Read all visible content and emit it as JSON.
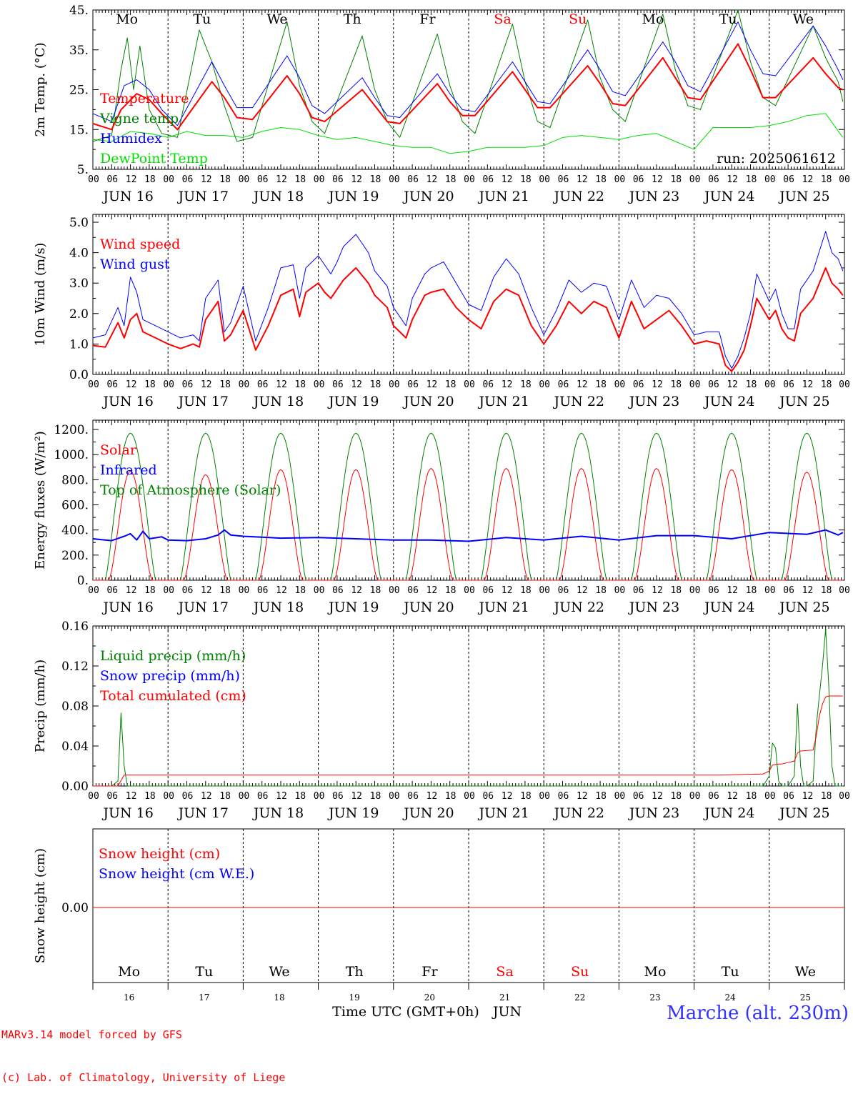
{
  "colors": {
    "red": "#ff0000",
    "blue": "#0000ff",
    "green": "#008000",
    "lightgreen": "#00dd00",
    "darkblue": "#3333ff"
  },
  "footer": {
    "credit_line1": "MARv3.14 model forced by GFS",
    "credit_line2": "(c) Lab. of Climatology, University of Liege",
    "xlabel": "Time UTC (GMT+0h)",
    "month": "JUN",
    "station": "Marche (alt. 230m)"
  },
  "weekdays": [
    "Mo",
    "Tu",
    "We",
    "Th",
    "Fr",
    "Sa",
    "Su",
    "Mo",
    "Tu",
    "We"
  ],
  "weekend_flags": [
    false,
    false,
    false,
    false,
    false,
    true,
    true,
    false,
    false,
    false
  ],
  "date_labels": [
    "JUN 16",
    "JUN 17",
    "JUN 18",
    "JUN 19",
    "JUN 20",
    "JUN 21",
    "JUN 22",
    "JUN 23",
    "JUN 24",
    "JUN 25"
  ],
  "day_numbers": [
    "16",
    "17",
    "18",
    "19",
    "20",
    "21",
    "22",
    "23",
    "24",
    "25"
  ],
  "hour_labels": [
    "00",
    "06",
    "12",
    "18"
  ],
  "chart_data": [
    {
      "type": "line",
      "id": "temperature",
      "ylabel": "2m Temp. (°C)",
      "yticks": [
        "5.",
        "15.",
        "25.",
        "35.",
        "45."
      ],
      "ylim": [
        5,
        45
      ],
      "x_unit": "hours since 2025-06-16 00 UTC",
      "annotation": "run: 2025061612",
      "series": [
        {
          "name": "Temperature",
          "color": "#ff0000",
          "width": 2,
          "x": [
            0,
            6,
            9,
            14,
            18,
            22,
            27,
            38,
            42,
            46,
            51,
            62,
            66,
            70,
            74,
            86,
            90,
            94,
            98,
            110,
            114,
            118,
            122,
            134,
            138,
            142,
            146,
            158,
            162,
            166,
            170,
            182,
            186,
            190,
            194,
            206,
            210,
            214,
            218,
            230,
            234,
            238,
            239.5
          ],
          "values": [
            16.5,
            15,
            20,
            24,
            22.5,
            19,
            15,
            27,
            23,
            18,
            17.5,
            28.5,
            24,
            18,
            17,
            25,
            21,
            17,
            16.5,
            26.5,
            22,
            18.5,
            18.5,
            29.5,
            25,
            20.5,
            20.5,
            31,
            26.5,
            21.5,
            21,
            33,
            28,
            23,
            22.5,
            36.5,
            30,
            23,
            23,
            33,
            29,
            25.5,
            25
          ]
        },
        {
          "name": "Vigne temp",
          "color": "#008000",
          "width": 1,
          "x": [
            0,
            6,
            9,
            11,
            13,
            15,
            18,
            22,
            27,
            34,
            38,
            42,
            46,
            51,
            62,
            66,
            70,
            74,
            86,
            90,
            94,
            98,
            110,
            114,
            118,
            122,
            134,
            138,
            142,
            146,
            158,
            162,
            166,
            170,
            182,
            186,
            190,
            194,
            206,
            210,
            214,
            218,
            230,
            234,
            238,
            239.5
          ],
          "values": [
            12,
            13.5,
            30,
            38,
            25,
            36,
            20,
            14,
            13,
            40,
            32,
            21,
            12,
            13,
            42,
            26,
            17,
            14,
            38.5,
            25,
            17,
            13,
            39,
            26,
            17,
            14,
            41.5,
            27,
            17,
            15.5,
            42.5,
            28,
            20,
            17,
            44,
            30,
            21,
            20,
            45,
            32,
            23,
            21,
            41,
            33,
            27,
            22
          ]
        },
        {
          "name": "Humidex",
          "color": "#0000ff",
          "width": 1,
          "x": [
            0,
            6,
            10,
            14,
            18,
            22,
            27,
            38,
            42,
            46,
            51,
            62,
            66,
            70,
            74,
            86,
            90,
            94,
            98,
            110,
            114,
            118,
            122,
            134,
            138,
            142,
            146,
            158,
            162,
            166,
            170,
            182,
            186,
            190,
            194,
            206,
            210,
            214,
            218,
            230,
            234,
            238,
            239.5
          ],
          "values": [
            19,
            17,
            26,
            27.5,
            25,
            20,
            16,
            32,
            26,
            20.5,
            20.5,
            33.5,
            28,
            21,
            19,
            28,
            23,
            18.5,
            18,
            29,
            24,
            20,
            19.5,
            32,
            27,
            22,
            21.5,
            35,
            30,
            24.5,
            23.5,
            37,
            32,
            26,
            24.5,
            42,
            35,
            29,
            28.5,
            41,
            36,
            30,
            27.5
          ]
        },
        {
          "name": "DewPoint Temp",
          "color": "#00dd00",
          "width": 1,
          "x": [
            0,
            6,
            12,
            18,
            24,
            30,
            36,
            42,
            48,
            54,
            60,
            66,
            72,
            78,
            84,
            90,
            96,
            102,
            108,
            114,
            120,
            126,
            132,
            138,
            144,
            150,
            156,
            162,
            168,
            174,
            180,
            186,
            192,
            198,
            204,
            210,
            216,
            222,
            228,
            234,
            239.5
          ],
          "values": [
            12.5,
            12,
            14.5,
            14,
            13,
            14.5,
            13.5,
            13.5,
            13,
            14.5,
            15.5,
            15,
            13.5,
            12.5,
            13,
            12,
            11,
            10.5,
            10.5,
            9,
            9.5,
            10.5,
            10.5,
            10.5,
            11,
            13,
            13.5,
            13,
            12.5,
            13.5,
            14,
            12,
            10,
            15.5,
            15.5,
            15.5,
            16,
            17,
            18.5,
            19,
            13
          ]
        }
      ]
    },
    {
      "type": "line",
      "id": "wind",
      "ylabel": "10m Wind (m/s)",
      "yticks": [
        "0.0",
        "1.0",
        "2.0",
        "3.0",
        "4.0",
        "5.0"
      ],
      "ylim": [
        0,
        5
      ],
      "series": [
        {
          "name": "Wind speed",
          "color": "#ff0000",
          "width": 2,
          "x": [
            0,
            4,
            8,
            10,
            12,
            14,
            16,
            20,
            24,
            28,
            32,
            34,
            36,
            40,
            42,
            44,
            48,
            52,
            56,
            60,
            64,
            66,
            68,
            72,
            74,
            76,
            78,
            80,
            84,
            88,
            90,
            94,
            96,
            100,
            102,
            106,
            108,
            112,
            116,
            120,
            124,
            128,
            132,
            136,
            140,
            144,
            148,
            152,
            156,
            160,
            164,
            168,
            172,
            176,
            180,
            184,
            188,
            192,
            196,
            200,
            202,
            204,
            206,
            208,
            210,
            212,
            216,
            218,
            220,
            222,
            224,
            226,
            230,
            234,
            236,
            238,
            239.5
          ],
          "values": [
            0.95,
            0.9,
            1.7,
            1.2,
            1.8,
            2.0,
            1.4,
            1.2,
            1.0,
            0.85,
            1.0,
            0.9,
            1.8,
            2.4,
            1.1,
            1.3,
            2.1,
            0.8,
            1.6,
            2.6,
            2.8,
            1.9,
            2.7,
            3.0,
            2.7,
            2.5,
            2.8,
            3.1,
            3.5,
            3.0,
            2.6,
            2.2,
            1.6,
            1.2,
            1.8,
            2.6,
            2.7,
            2.8,
            2.2,
            1.8,
            1.5,
            2.4,
            2.8,
            2.6,
            1.6,
            1.0,
            1.6,
            2.4,
            2.0,
            2.4,
            2.2,
            1.2,
            2.4,
            1.5,
            1.8,
            2.1,
            1.6,
            1.0,
            1.1,
            1.0,
            0.3,
            0.1,
            0.4,
            0.8,
            1.6,
            2.5,
            1.8,
            2.1,
            1.5,
            1.2,
            1.1,
            2.0,
            2.5,
            3.5,
            3.0,
            2.8,
            2.6
          ]
        },
        {
          "name": "Wind gust",
          "color": "#0000ff",
          "width": 1,
          "x": [
            0,
            4,
            8,
            10,
            12,
            14,
            16,
            20,
            24,
            28,
            32,
            34,
            36,
            40,
            42,
            44,
            48,
            52,
            56,
            60,
            64,
            66,
            68,
            72,
            74,
            76,
            78,
            80,
            84,
            88,
            90,
            94,
            96,
            100,
            102,
            106,
            108,
            112,
            116,
            120,
            124,
            128,
            132,
            136,
            140,
            144,
            148,
            152,
            156,
            160,
            164,
            168,
            172,
            176,
            180,
            184,
            188,
            192,
            196,
            200,
            202,
            204,
            206,
            208,
            210,
            212,
            216,
            218,
            220,
            222,
            224,
            226,
            230,
            234,
            236,
            238,
            239.5
          ],
          "values": [
            1.2,
            1.3,
            2.2,
            1.6,
            3.2,
            2.7,
            1.8,
            1.6,
            1.4,
            1.2,
            1.3,
            1.1,
            2.5,
            3.1,
            1.4,
            1.7,
            2.9,
            1.1,
            2.2,
            3.5,
            3.6,
            2.5,
            3.5,
            3.9,
            3.6,
            3.3,
            3.7,
            4.2,
            4.6,
            4.0,
            3.4,
            2.9,
            2.2,
            1.6,
            2.5,
            3.3,
            3.5,
            3.7,
            3.0,
            2.3,
            2.1,
            3.2,
            3.8,
            3.3,
            2.2,
            1.3,
            2.1,
            3.1,
            2.7,
            3.0,
            2.9,
            1.8,
            3.1,
            2.2,
            2.6,
            2.5,
            2.0,
            1.3,
            1.4,
            1.4,
            0.6,
            0.2,
            0.6,
            1.2,
            2.0,
            3.3,
            2.4,
            2.8,
            2.0,
            1.5,
            1.5,
            2.8,
            3.4,
            4.7,
            4.0,
            3.8,
            3.4
          ]
        }
      ]
    },
    {
      "type": "line",
      "id": "energy",
      "ylabel": "Energy fluxes (W/m²)",
      "yticks": [
        "0.",
        "200.",
        "400.",
        "600.",
        "800.",
        "1000.",
        "1200."
      ],
      "ylim": [
        0,
        1200
      ],
      "solar_peaks": [
        870,
        840,
        880,
        880,
        890,
        890,
        890,
        890,
        880,
        860
      ],
      "toa_peak": 1170,
      "series": [
        {
          "name": "Solar",
          "color": "#ff0000",
          "width": 1
        },
        {
          "name": "Infrared",
          "color": "#0000ff",
          "width": 2,
          "x": [
            0,
            6,
            10,
            12,
            14,
            16,
            18,
            22,
            24,
            30,
            36,
            40,
            42,
            44,
            48,
            60,
            72,
            84,
            96,
            108,
            120,
            132,
            144,
            156,
            168,
            180,
            192,
            204,
            216,
            228,
            234,
            236,
            238,
            239.5
          ],
          "values": [
            330,
            315,
            350,
            370,
            320,
            390,
            330,
            345,
            320,
            315,
            330,
            360,
            400,
            360,
            350,
            335,
            340,
            330,
            320,
            320,
            310,
            340,
            320,
            350,
            320,
            355,
            355,
            330,
            380,
            365,
            400,
            380,
            360,
            380
          ]
        },
        {
          "name": "Top of Atmosphere (Solar)",
          "color": "#008000",
          "width": 1
        }
      ]
    },
    {
      "type": "line",
      "id": "precip",
      "ylabel": "Precip (mm/h)",
      "yticks": [
        "0.00",
        "0.04",
        "0.08",
        "0.12",
        "0.16"
      ],
      "ylim": [
        0,
        0.16
      ],
      "series": [
        {
          "name": "Liquid precip (mm/h)",
          "color": "#008000",
          "width": 1,
          "x": [
            0,
            6,
            8,
            9,
            10,
            11,
            214,
            216,
            217,
            218,
            219,
            220,
            222,
            224,
            225,
            226,
            227,
            228,
            230,
            231,
            232,
            233,
            234,
            235,
            236,
            237,
            238,
            239.5
          ],
          "values": [
            0,
            0,
            0.005,
            0.073,
            0.02,
            0,
            0,
            0.01,
            0.043,
            0.038,
            0.005,
            0,
            0,
            0.01,
            0.082,
            0.02,
            0,
            0,
            0.005,
            0.06,
            0.09,
            0.12,
            0.157,
            0.1,
            0.02,
            0,
            0,
            0
          ]
        },
        {
          "name": "Snow precip (mm/h)",
          "color": "#0000ff",
          "width": 1
        },
        {
          "name": "Total cumulated (cm)",
          "color": "#ff0000",
          "width": 1,
          "x": [
            0,
            8,
            10,
            200,
            214,
            216,
            217,
            219,
            220,
            224,
            225,
            226,
            230,
            231,
            232,
            233,
            234,
            235,
            236,
            237,
            238,
            239.5
          ],
          "values": [
            0,
            0,
            0.011,
            0.011,
            0.012,
            0.015,
            0.021,
            0.022,
            0.022,
            0.025,
            0.033,
            0.035,
            0.036,
            0.05,
            0.07,
            0.082,
            0.089,
            0.09,
            0.09,
            0.09,
            0.09,
            0.09
          ]
        }
      ]
    },
    {
      "type": "line",
      "id": "snow",
      "ylabel": "Snow height (cm)",
      "yticks": [
        "0.00"
      ],
      "series": [
        {
          "name": "Snow height (cm)",
          "color": "#ff0000",
          "width": 1,
          "values": [
            0
          ]
        },
        {
          "name": "Snow height (cm W.E.)",
          "color": "#0000ff",
          "width": 1
        }
      ]
    }
  ]
}
